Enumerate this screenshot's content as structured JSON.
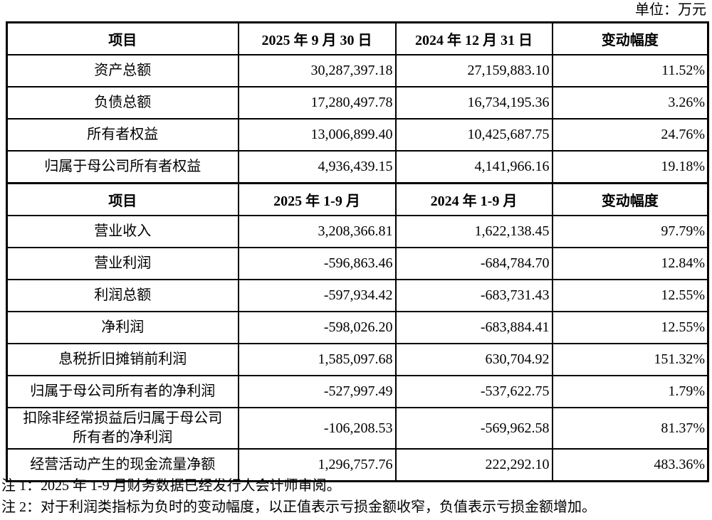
{
  "unit_label": "单位：万元",
  "colors": {
    "border": "#000000",
    "text": "#000000",
    "background": "#ffffff"
  },
  "table": {
    "sections": [
      {
        "header": [
          "项目",
          "2025 年 9 月 30 日",
          "2024 年 12 月 31 日",
          "变动幅度"
        ],
        "rows": [
          [
            "资产总额",
            "30,287,397.18",
            "27,159,883.10",
            "11.52%"
          ],
          [
            "负债总额",
            "17,280,497.78",
            "16,734,195.36",
            "3.26%"
          ],
          [
            "所有者权益",
            "13,006,899.40",
            "10,425,687.75",
            "24.76%"
          ],
          [
            "归属于母公司所有者权益",
            "4,936,439.15",
            "4,141,966.16",
            "19.18%"
          ]
        ]
      },
      {
        "header": [
          "项目",
          "2025 年 1-9 月",
          "2024 年 1-9 月",
          "变动幅度"
        ],
        "rows": [
          [
            "营业收入",
            "3,208,366.81",
            "1,622,138.45",
            "97.79%"
          ],
          [
            "营业利润",
            "-596,863.46",
            "-684,784.70",
            "12.84%"
          ],
          [
            "利润总额",
            "-597,934.42",
            "-683,731.43",
            "12.55%"
          ],
          [
            "净利润",
            "-598,026.20",
            "-683,884.41",
            "12.55%"
          ],
          [
            "息税折旧摊销前利润",
            "1,585,097.68",
            "630,704.92",
            "151.32%"
          ],
          [
            "归属于母公司所有者的净利润",
            "-527,997.49",
            "-537,622.75",
            "1.79%"
          ],
          [
            "扣除非经常损益后归属于母公司\n所有者的净利润",
            "-106,208.53",
            "-569,962.58",
            "81.37%"
          ],
          [
            "经营活动产生的现金流量净额",
            "1,296,757.76",
            "222,292.10",
            "483.36%"
          ]
        ]
      }
    ]
  },
  "notes": [
    "注 1：2025 年 1-9 月财务数据已经发行人会计师审阅。",
    "注 2：对于利润类指标为负时的变动幅度，以正值表示亏损金额收窄，负值表示亏损金额增加。"
  ]
}
